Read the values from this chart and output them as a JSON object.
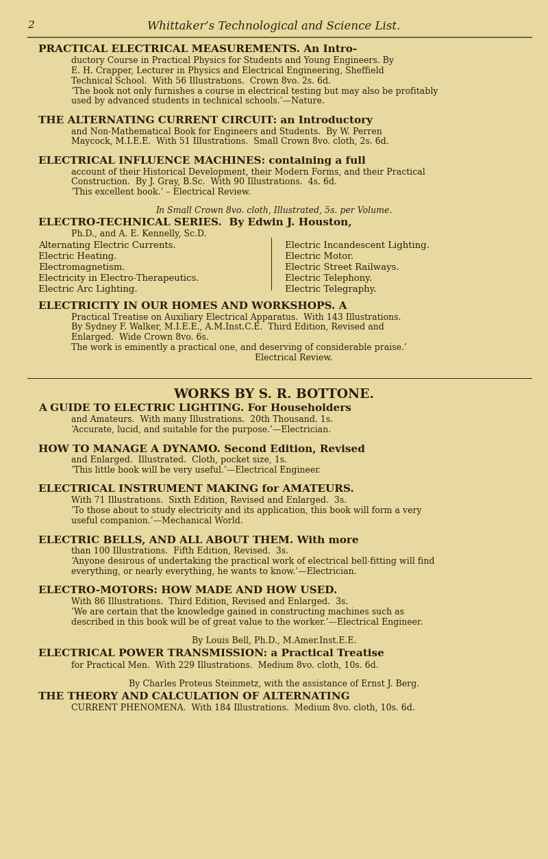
{
  "bg_color": "#e8d9a0",
  "text_color": "#2a1f0e",
  "page_width": 8.0,
  "page_height": 12.54,
  "header_number": "2",
  "header_title": "Whittaker’s Technological and Science List.",
  "sections": [
    {
      "type": "entry",
      "title_bold": "PRACTICAL ELECTRICAL MEASUREMENTS.",
      "title_normal": " An Intro-",
      "body": "ductory Course in Practical Physics for Students and Young Engineers. By\nE. H. Crapper, Lecturer in Physics and Electrical Engineering, Sheffield\nTechnical School.  With 56 Illustrations.  Crown 8vo. 2s. 6d.\n‘The book not only furnishes a course in electrical testing but may also be profitably\nused by advanced students in technical schools.’—Nature."
    },
    {
      "type": "entry",
      "title_bold": "THE ALTERNATING CURRENT CIRCUIT:",
      "title_normal": " an Introductory",
      "body": "and Non-Mathematical Book for Engineers and Students.  By W. Perren\nMaycock, M.I.E.E.  With 51 Illustrations.  Small Crown 8vo. cloth, 2s. 6d."
    },
    {
      "type": "entry",
      "title_bold": "ELECTRICAL INFLUENCE MACHINES:",
      "title_normal": " containing a full",
      "body": "account of their Historical Development, their Modern Forms, and their Practical\nConstruction.  By J. Gray, B.Sc.  With 90 Illustrations.  4s. 6d.\n‘This excellent book.’ – Electrical Review."
    },
    {
      "type": "series_header",
      "center_line": "In Small Crown 8vo. cloth, Illustrated, 5s. per Volume.",
      "title_bold": "ELECTRO-TECHNICAL SERIES.",
      "title_normal": "  By Edwin J. Houston,",
      "subtitle": "Ph.D., and A. E. Kennelly, Sc.D.",
      "left_items": [
        "Alternating Electric Currents.",
        "Electric Heating.",
        "Electromagnetism.",
        "Electricity in Electro-Therapeutics.",
        "Electric Arc Lighting."
      ],
      "right_items": [
        "Electric Incandescent Lighting.",
        "Electric Motor.",
        "Electric Street Railways.",
        "Electric Telephony.",
        "Electric Telegraphy."
      ]
    },
    {
      "type": "entry",
      "title_bold": "ELECTRICITY IN OUR HOMES AND WORKSHOPS.",
      "title_normal": " A",
      "body": "Practical Treatise on Auxiliary Electrical Apparatus.  With 143 Illustrations.\nBy Sydney F. Walker, M.I.E.E., A.M.Inst.C.E.  Third Edition, Revised and\nEnlarged.  Wide Crown 8vo. 6s.\nThe work is eminently a practical one, and deserving of considerable praise.’\n                                                                   Electrical Review."
    },
    {
      "type": "center_heading",
      "text": "WORKS BY S. R. BOTTONE."
    },
    {
      "type": "entry",
      "title_bold": "A GUIDE TO ELECTRIC LIGHTING.",
      "title_normal": " For Householders",
      "body": "and Amateurs.  With many Illustrations.  20th Thousand. 1s.\n‘Accurate, lucid, and suitable for the purpose.’—Electrician."
    },
    {
      "type": "entry",
      "title_bold": "HOW TO MANAGE A DYNAMO.",
      "title_normal": " Second Edition, Revised",
      "body": "and Enlarged.  Illustrated.  Cloth, pocket size, 1s.\n‘This little book will be very useful.’—Electrical Engineer."
    },
    {
      "type": "entry",
      "title_bold": "ELECTRICAL INSTRUMENT MAKING for AMATEURS.",
      "title_normal": "",
      "body": "With 71 Illustrations.  Sixth Edition, Revised and Enlarged.  3s.\n‘To those about to study electricity and its application, this book will form a very\nuseful companion.’—Mechanical World."
    },
    {
      "type": "entry",
      "title_bold": "ELECTRIC BELLS, AND ALL ABOUT THEM.",
      "title_normal": " With more",
      "body": "than 100 Illustrations.  Fifth Edition, Revised.  3s.\n‘Anyone desirous of undertaking the practical work of electrical bell-fitting will find\neverything, or nearly everything, he wants to know.’—Electrician."
    },
    {
      "type": "entry",
      "title_bold": "ELECTRO-MOTORS: HOW MADE AND HOW USED.",
      "title_normal": "",
      "body": "With 86 Illustrations.  Third Edition, Revised and Enlarged.  3s.\n‘We are certain that the knowledge gained in constructing machines such as\ndescribed in this book will be of great value to the worker.’—Electrical Engineer."
    },
    {
      "type": "byline",
      "text": "By Louis Bell, Ph.D., M.Amer.Inst.E.E."
    },
    {
      "type": "entry",
      "title_bold": "ELECTRICAL POWER TRANSMISSION:",
      "title_normal": " a Practical Treatise",
      "body": "for Practical Men.  With 229 Illustrations.  Medium 8vo. cloth, 10s. 6d."
    },
    {
      "type": "byline",
      "text": "By Charles Proteus Steinmetz, with the assistance of Ernst J. Berg."
    },
    {
      "type": "entry",
      "title_bold": "THE THEORY AND CALCULATION OF ALTERNATING",
      "title_normal": "",
      "body": "CURRENT PHENOMENA.  With 184 Illustrations.  Medium 8vo. cloth, 10s. 6d."
    }
  ]
}
